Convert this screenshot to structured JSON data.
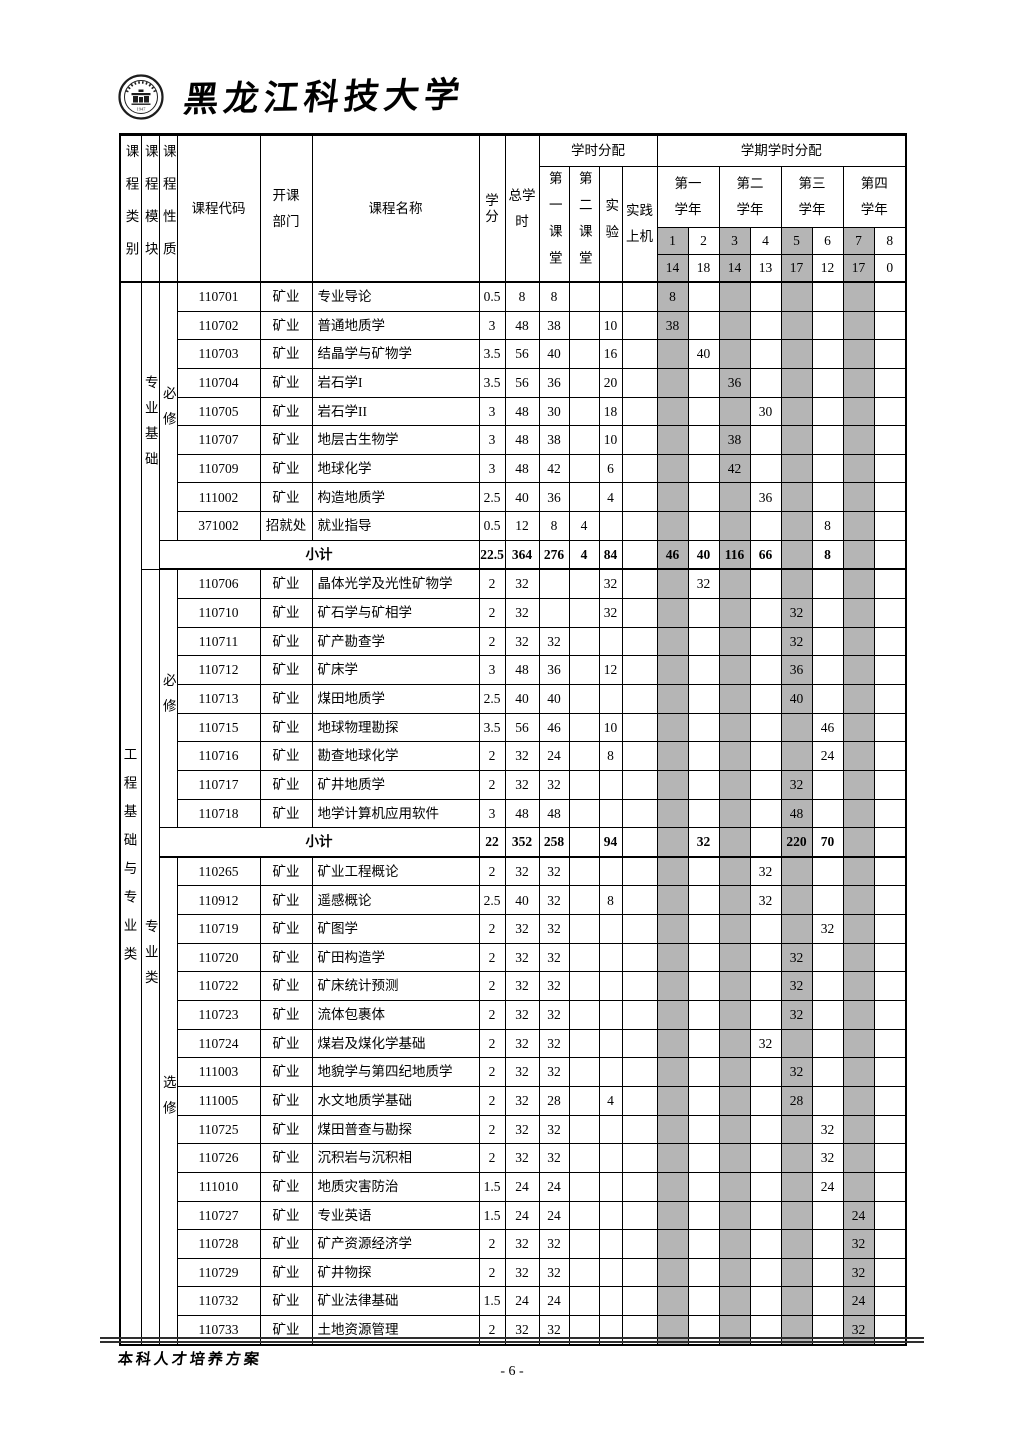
{
  "page": {
    "university_name": "黑龙江科技大学",
    "seal_year": "1947",
    "footer_text": "本科人才培养方案",
    "page_number": "- 6 -"
  },
  "colors": {
    "shaded_cell": "#b5b5b5",
    "border": "#000000"
  },
  "table": {
    "header": {
      "category": "课程类别",
      "module": "课程模块",
      "nature": "课程性质",
      "code": "课程代码",
      "dept": "开课部门",
      "name": "课程名称",
      "credit": "学分",
      "total_hours": "总学时",
      "hour_allocation": "学时分配",
      "first_classroom": "第一课堂",
      "second_classroom": "第二课堂",
      "experiment": "实验",
      "practice_computer": "实践上机",
      "semester_allocation": "学期学时分配",
      "years": [
        "第一学年",
        "第二学年",
        "第三学年",
        "第四学年"
      ],
      "semester_numbers": [
        "1",
        "2",
        "3",
        "4",
        "5",
        "6",
        "7",
        "8"
      ],
      "semester_weeks": [
        "14",
        "18",
        "14",
        "13",
        "17",
        "12",
        "17",
        "0"
      ]
    },
    "category_label": "工程基础与专业类",
    "module_spans": [
      {
        "start": 0,
        "rows": 10,
        "label": "专业基础"
      },
      {
        "start": 10,
        "rows": 27,
        "label": "专业类"
      }
    ],
    "nature_spans": [
      {
        "start": 0,
        "rows": 9,
        "label": "必修"
      },
      {
        "start": 10,
        "rows": 9,
        "label": "必修"
      },
      {
        "start": 20,
        "rows": 17,
        "label": "选修"
      }
    ],
    "rows": [
      {
        "type": "course",
        "code": "110701",
        "dept": "矿业",
        "name": "专业导论",
        "credit": "0.5",
        "total": "8",
        "c1": "8",
        "c2": "",
        "exp": "",
        "prac": "",
        "sems": [
          "8",
          "",
          "",
          "",
          "",
          "",
          "",
          ""
        ]
      },
      {
        "type": "course",
        "code": "110702",
        "dept": "矿业",
        "name": "普通地质学",
        "credit": "3",
        "total": "48",
        "c1": "38",
        "c2": "",
        "exp": "10",
        "prac": "",
        "sems": [
          "38",
          "",
          "",
          "",
          "",
          "",
          "",
          ""
        ]
      },
      {
        "type": "course",
        "code": "110703",
        "dept": "矿业",
        "name": "结晶学与矿物学",
        "credit": "3.5",
        "total": "56",
        "c1": "40",
        "c2": "",
        "exp": "16",
        "prac": "",
        "sems": [
          "",
          "40",
          "",
          "",
          "",
          "",
          "",
          ""
        ]
      },
      {
        "type": "course",
        "code": "110704",
        "dept": "矿业",
        "name": "岩石学I",
        "credit": "3.5",
        "total": "56",
        "c1": "36",
        "c2": "",
        "exp": "20",
        "prac": "",
        "sems": [
          "",
          "",
          "36",
          "",
          "",
          "",
          "",
          ""
        ]
      },
      {
        "type": "course",
        "code": "110705",
        "dept": "矿业",
        "name": "岩石学II",
        "credit": "3",
        "total": "48",
        "c1": "30",
        "c2": "",
        "exp": "18",
        "prac": "",
        "sems": [
          "",
          "",
          "",
          "30",
          "",
          "",
          "",
          ""
        ]
      },
      {
        "type": "course",
        "code": "110707",
        "dept": "矿业",
        "name": "地层古生物学",
        "credit": "3",
        "total": "48",
        "c1": "38",
        "c2": "",
        "exp": "10",
        "prac": "",
        "sems": [
          "",
          "",
          "38",
          "",
          "",
          "",
          "",
          ""
        ]
      },
      {
        "type": "course",
        "code": "110709",
        "dept": "矿业",
        "name": "地球化学",
        "credit": "3",
        "total": "48",
        "c1": "42",
        "c2": "",
        "exp": "6",
        "prac": "",
        "sems": [
          "",
          "",
          "42",
          "",
          "",
          "",
          "",
          ""
        ]
      },
      {
        "type": "course",
        "code": "111002",
        "dept": "矿业",
        "name": "构造地质学",
        "credit": "2.5",
        "total": "40",
        "c1": "36",
        "c2": "",
        "exp": "4",
        "prac": "",
        "sems": [
          "",
          "",
          "",
          "36",
          "",
          "",
          "",
          ""
        ]
      },
      {
        "type": "course",
        "code": "371002",
        "dept": "招就处",
        "name": "就业指导",
        "credit": "0.5",
        "total": "12",
        "c1": "8",
        "c2": "4",
        "exp": "",
        "prac": "",
        "sems": [
          "",
          "",
          "",
          "",
          "",
          "8",
          "",
          ""
        ]
      },
      {
        "type": "subtotal",
        "label": "小计",
        "credit": "22.5",
        "total": "364",
        "c1": "276",
        "c2": "4",
        "exp": "84",
        "prac": "",
        "sems": [
          "46",
          "40",
          "116",
          "66",
          "",
          "8",
          "",
          ""
        ]
      },
      {
        "type": "course",
        "code": "110706",
        "dept": "矿业",
        "name": "晶体光学及光性矿物学",
        "credit": "2",
        "total": "32",
        "c1": "",
        "c2": "",
        "exp": "32",
        "prac": "",
        "sems": [
          "",
          "32",
          "",
          "",
          "",
          "",
          "",
          ""
        ]
      },
      {
        "type": "course",
        "code": "110710",
        "dept": "矿业",
        "name": "矿石学与矿相学",
        "credit": "2",
        "total": "32",
        "c1": "",
        "c2": "",
        "exp": "32",
        "prac": "",
        "sems": [
          "",
          "",
          "",
          "",
          "32",
          "",
          "",
          ""
        ]
      },
      {
        "type": "course",
        "code": "110711",
        "dept": "矿业",
        "name": "矿产勘查学",
        "credit": "2",
        "total": "32",
        "c1": "32",
        "c2": "",
        "exp": "",
        "prac": "",
        "sems": [
          "",
          "",
          "",
          "",
          "32",
          "",
          "",
          ""
        ]
      },
      {
        "type": "course",
        "code": "110712",
        "dept": "矿业",
        "name": "矿床学",
        "credit": "3",
        "total": "48",
        "c1": "36",
        "c2": "",
        "exp": "12",
        "prac": "",
        "sems": [
          "",
          "",
          "",
          "",
          "36",
          "",
          "",
          ""
        ]
      },
      {
        "type": "course",
        "code": "110713",
        "dept": "矿业",
        "name": "煤田地质学",
        "credit": "2.5",
        "total": "40",
        "c1": "40",
        "c2": "",
        "exp": "",
        "prac": "",
        "sems": [
          "",
          "",
          "",
          "",
          "40",
          "",
          "",
          ""
        ]
      },
      {
        "type": "course",
        "code": "110715",
        "dept": "矿业",
        "name": "地球物理勘探",
        "credit": "3.5",
        "total": "56",
        "c1": "46",
        "c2": "",
        "exp": "10",
        "prac": "",
        "sems": [
          "",
          "",
          "",
          "",
          "",
          "46",
          "",
          ""
        ]
      },
      {
        "type": "course",
        "code": "110716",
        "dept": "矿业",
        "name": "勘查地球化学",
        "credit": "2",
        "total": "32",
        "c1": "24",
        "c2": "",
        "exp": "8",
        "prac": "",
        "sems": [
          "",
          "",
          "",
          "",
          "",
          "24",
          "",
          ""
        ]
      },
      {
        "type": "course",
        "code": "110717",
        "dept": "矿业",
        "name": "矿井地质学",
        "credit": "2",
        "total": "32",
        "c1": "32",
        "c2": "",
        "exp": "",
        "prac": "",
        "sems": [
          "",
          "",
          "",
          "",
          "32",
          "",
          "",
          ""
        ]
      },
      {
        "type": "course",
        "code": "110718",
        "dept": "矿业",
        "name": "地学计算机应用软件",
        "credit": "3",
        "total": "48",
        "c1": "48",
        "c2": "",
        "exp": "",
        "prac": "",
        "sems": [
          "",
          "",
          "",
          "",
          "48",
          "",
          "",
          ""
        ]
      },
      {
        "type": "subtotal",
        "label": "小计",
        "credit": "22",
        "total": "352",
        "c1": "258",
        "c2": "",
        "exp": "94",
        "prac": "",
        "sems": [
          "",
          "32",
          "",
          "",
          "220",
          "70",
          "",
          ""
        ]
      },
      {
        "type": "course",
        "code": "110265",
        "dept": "矿业",
        "name": "矿业工程概论",
        "credit": "2",
        "total": "32",
        "c1": "32",
        "c2": "",
        "exp": "",
        "prac": "",
        "sems": [
          "",
          "",
          "",
          "32",
          "",
          "",
          "",
          ""
        ]
      },
      {
        "type": "course",
        "code": "110912",
        "dept": "矿业",
        "name": "遥感概论",
        "credit": "2.5",
        "total": "40",
        "c1": "32",
        "c2": "",
        "exp": "8",
        "prac": "",
        "sems": [
          "",
          "",
          "",
          "32",
          "",
          "",
          "",
          ""
        ]
      },
      {
        "type": "course",
        "code": "110719",
        "dept": "矿业",
        "name": "矿图学",
        "credit": "2",
        "total": "32",
        "c1": "32",
        "c2": "",
        "exp": "",
        "prac": "",
        "sems": [
          "",
          "",
          "",
          "",
          "",
          "32",
          "",
          ""
        ]
      },
      {
        "type": "course",
        "code": "110720",
        "dept": "矿业",
        "name": "矿田构造学",
        "credit": "2",
        "total": "32",
        "c1": "32",
        "c2": "",
        "exp": "",
        "prac": "",
        "sems": [
          "",
          "",
          "",
          "",
          "32",
          "",
          "",
          ""
        ]
      },
      {
        "type": "course",
        "code": "110722",
        "dept": "矿业",
        "name": "矿床统计预测",
        "credit": "2",
        "total": "32",
        "c1": "32",
        "c2": "",
        "exp": "",
        "prac": "",
        "sems": [
          "",
          "",
          "",
          "",
          "32",
          "",
          "",
          ""
        ]
      },
      {
        "type": "course",
        "code": "110723",
        "dept": "矿业",
        "name": "流体包裹体",
        "credit": "2",
        "total": "32",
        "c1": "32",
        "c2": "",
        "exp": "",
        "prac": "",
        "sems": [
          "",
          "",
          "",
          "",
          "32",
          "",
          "",
          ""
        ]
      },
      {
        "type": "course",
        "code": "110724",
        "dept": "矿业",
        "name": "煤岩及煤化学基础",
        "credit": "2",
        "total": "32",
        "c1": "32",
        "c2": "",
        "exp": "",
        "prac": "",
        "sems": [
          "",
          "",
          "",
          "32",
          "",
          "",
          "",
          ""
        ]
      },
      {
        "type": "course",
        "code": "111003",
        "dept": "矿业",
        "name": "地貌学与第四纪地质学",
        "credit": "2",
        "total": "32",
        "c1": "32",
        "c2": "",
        "exp": "",
        "prac": "",
        "sems": [
          "",
          "",
          "",
          "",
          "32",
          "",
          "",
          ""
        ]
      },
      {
        "type": "course",
        "code": "111005",
        "dept": "矿业",
        "name": "水文地质学基础",
        "credit": "2",
        "total": "32",
        "c1": "28",
        "c2": "",
        "exp": "4",
        "prac": "",
        "sems": [
          "",
          "",
          "",
          "",
          "28",
          "",
          "",
          ""
        ]
      },
      {
        "type": "course",
        "code": "110725",
        "dept": "矿业",
        "name": "煤田普查与勘探",
        "credit": "2",
        "total": "32",
        "c1": "32",
        "c2": "",
        "exp": "",
        "prac": "",
        "sems": [
          "",
          "",
          "",
          "",
          "",
          "32",
          "",
          ""
        ]
      },
      {
        "type": "course",
        "code": "110726",
        "dept": "矿业",
        "name": "沉积岩与沉积相",
        "credit": "2",
        "total": "32",
        "c1": "32",
        "c2": "",
        "exp": "",
        "prac": "",
        "sems": [
          "",
          "",
          "",
          "",
          "",
          "32",
          "",
          ""
        ]
      },
      {
        "type": "course",
        "code": "111010",
        "dept": "矿业",
        "name": "地质灾害防治",
        "credit": "1.5",
        "total": "24",
        "c1": "24",
        "c2": "",
        "exp": "",
        "prac": "",
        "sems": [
          "",
          "",
          "",
          "",
          "",
          "24",
          "",
          ""
        ]
      },
      {
        "type": "course",
        "code": "110727",
        "dept": "矿业",
        "name": "专业英语",
        "credit": "1.5",
        "total": "24",
        "c1": "24",
        "c2": "",
        "exp": "",
        "prac": "",
        "sems": [
          "",
          "",
          "",
          "",
          "",
          "",
          "24",
          ""
        ]
      },
      {
        "type": "course",
        "code": "110728",
        "dept": "矿业",
        "name": "矿产资源经济学",
        "credit": "2",
        "total": "32",
        "c1": "32",
        "c2": "",
        "exp": "",
        "prac": "",
        "sems": [
          "",
          "",
          "",
          "",
          "",
          "",
          "32",
          ""
        ]
      },
      {
        "type": "course",
        "code": "110729",
        "dept": "矿业",
        "name": "矿井物探",
        "credit": "2",
        "total": "32",
        "c1": "32",
        "c2": "",
        "exp": "",
        "prac": "",
        "sems": [
          "",
          "",
          "",
          "",
          "",
          "",
          "32",
          ""
        ]
      },
      {
        "type": "course",
        "code": "110732",
        "dept": "矿业",
        "name": "矿业法律基础",
        "credit": "1.5",
        "total": "24",
        "c1": "24",
        "c2": "",
        "exp": "",
        "prac": "",
        "sems": [
          "",
          "",
          "",
          "",
          "",
          "",
          "24",
          ""
        ]
      },
      {
        "type": "course",
        "code": "110733",
        "dept": "矿业",
        "name": "土地资源管理",
        "credit": "2",
        "total": "32",
        "c1": "32",
        "c2": "",
        "exp": "",
        "prac": "",
        "sems": [
          "",
          "",
          "",
          "",
          "",
          "",
          "32",
          ""
        ]
      }
    ]
  }
}
